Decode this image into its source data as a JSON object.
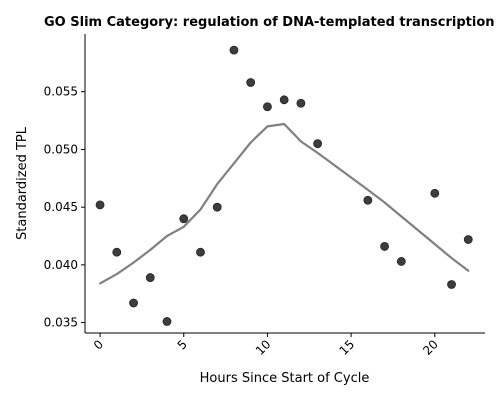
{
  "chart_data": {
    "type": "scatter",
    "title": "GO Slim Category: regulation of DNA-templated transcription",
    "xlabel": "Hours Since Start of Cycle",
    "ylabel": "Standardized TPL",
    "xlim": [
      -0.9,
      23.0
    ],
    "ylim": [
      0.0341,
      0.06
    ],
    "x_ticks": [
      0,
      5,
      10,
      15,
      20
    ],
    "y_ticks": [
      0.035,
      0.04,
      0.045,
      0.05,
      0.055
    ],
    "y_tick_labels": [
      "0.035",
      "0.040",
      "0.045",
      "0.050",
      "0.055"
    ],
    "grid": false,
    "series": [
      {
        "type": "scatter",
        "color": "#333333",
        "points": [
          {
            "x": 0,
            "y": 0.0452
          },
          {
            "x": 1,
            "y": 0.0411
          },
          {
            "x": 2,
            "y": 0.0367
          },
          {
            "x": 3,
            "y": 0.0389
          },
          {
            "x": 4,
            "y": 0.0351
          },
          {
            "x": 5,
            "y": 0.044
          },
          {
            "x": 6,
            "y": 0.0411
          },
          {
            "x": 7,
            "y": 0.045
          },
          {
            "x": 8,
            "y": 0.0586
          },
          {
            "x": 9,
            "y": 0.0558
          },
          {
            "x": 10,
            "y": 0.0537
          },
          {
            "x": 11,
            "y": 0.0543
          },
          {
            "x": 12,
            "y": 0.054
          },
          {
            "x": 13,
            "y": 0.0505
          },
          {
            "x": 16,
            "y": 0.0456
          },
          {
            "x": 17,
            "y": 0.0416
          },
          {
            "x": 18,
            "y": 0.0403
          },
          {
            "x": 20,
            "y": 0.0462
          },
          {
            "x": 21,
            "y": 0.0383
          },
          {
            "x": 22,
            "y": 0.0422
          }
        ]
      },
      {
        "type": "line",
        "color": "#808080",
        "points": [
          {
            "x": 0,
            "y": 0.0384
          },
          {
            "x": 1,
            "y": 0.0392
          },
          {
            "x": 2,
            "y": 0.0402
          },
          {
            "x": 3,
            "y": 0.0413
          },
          {
            "x": 4,
            "y": 0.0425
          },
          {
            "x": 5,
            "y": 0.0433
          },
          {
            "x": 6,
            "y": 0.0448
          },
          {
            "x": 7,
            "y": 0.047
          },
          {
            "x": 8,
            "y": 0.0488
          },
          {
            "x": 9,
            "y": 0.0506
          },
          {
            "x": 10,
            "y": 0.052
          },
          {
            "x": 11,
            "y": 0.0522
          },
          {
            "x": 12,
            "y": 0.0507
          },
          {
            "x": 13,
            "y": 0.0497
          },
          {
            "x": 16,
            "y": 0.0465
          },
          {
            "x": 17,
            "y": 0.0454
          },
          {
            "x": 18,
            "y": 0.0442
          },
          {
            "x": 20,
            "y": 0.0418
          },
          {
            "x": 21,
            "y": 0.0406
          },
          {
            "x": 22,
            "y": 0.0395
          }
        ]
      }
    ]
  }
}
